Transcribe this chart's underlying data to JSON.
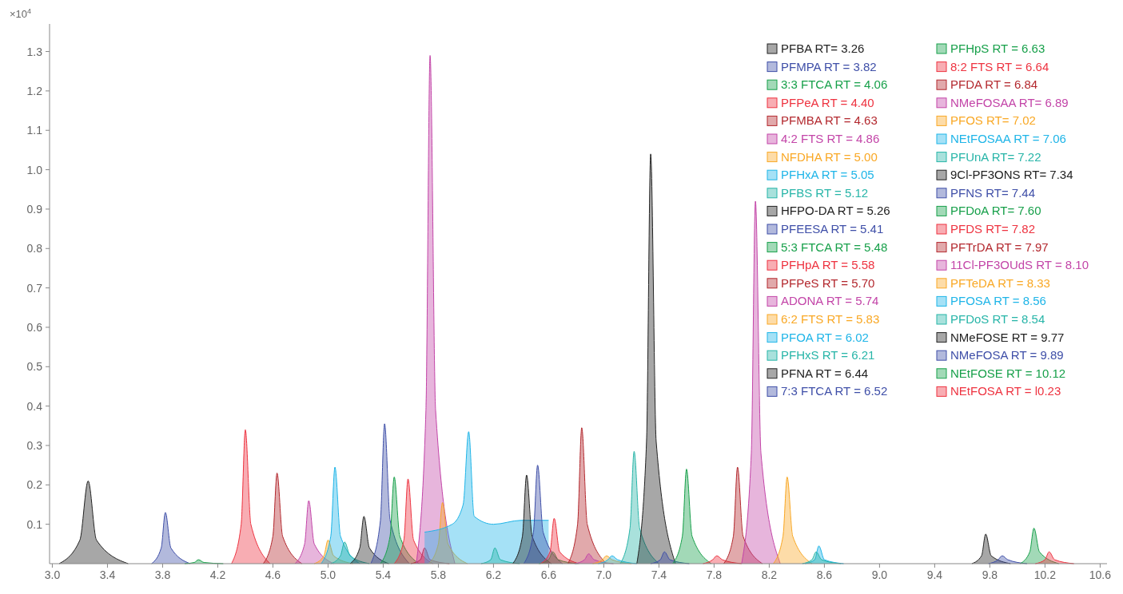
{
  "chart_data": {
    "type": "area",
    "ylabel": "×10$^{4}$",
    "xlim": [
      2.98,
      10.65
    ],
    "ylim": [
      0,
      1.37
    ],
    "xticks": [
      {
        "value": 3,
        "label": "3.0"
      },
      3.4,
      3.8,
      4.2,
      4.6,
      {
        "value": 5,
        "label": "5.0"
      },
      5.4,
      5.8,
      6.2,
      6.6,
      {
        "value": 7,
        "label": "7.0"
      },
      7.4,
      7.8,
      8.2,
      8.6,
      {
        "value": 9,
        "label": "9.0"
      },
      9.4,
      9.8,
      10.2,
      10.6
    ],
    "yticks": [
      0.1,
      0.2,
      0.3,
      0.4,
      0.5,
      0.6,
      0.7,
      0.8,
      0.9,
      {
        "value": 1,
        "label": "1.0"
      },
      1.1,
      1.2,
      1.3
    ],
    "grid": false,
    "legend": "top right",
    "series": [
      {
        "name": "PFBA RT= 3.26",
        "color": "#222222",
        "x": [
          3.05,
          3.2,
          3.26,
          3.32,
          3.55
        ],
        "values": [
          0,
          0.06,
          0.21,
          0.06,
          0
        ]
      },
      {
        "name": "PFMPA RT = 3.82",
        "color": "#3f4fa8",
        "x": [
          3.72,
          3.79,
          3.82,
          3.86,
          4.0
        ],
        "values": [
          0,
          0.04,
          0.13,
          0.04,
          0
        ]
      },
      {
        "name": "3:3 FTCA RT = 4.06",
        "color": "#17a04a",
        "x": [
          3.96,
          4.03,
          4.06,
          4.1,
          4.24
        ],
        "values": [
          0,
          0.003,
          0.01,
          0.003,
          0
        ]
      },
      {
        "name": "PFPeA RT = 4.40",
        "color": "#ee3340",
        "x": [
          4.3,
          4.37,
          4.4,
          4.44,
          4.58
        ],
        "values": [
          0,
          0.1,
          0.34,
          0.1,
          0
        ]
      },
      {
        "name": "PFMBA RT = 4.63",
        "color": "#b3282e",
        "x": [
          4.53,
          4.6,
          4.63,
          4.67,
          4.81
        ],
        "values": [
          0,
          0.07,
          0.23,
          0.07,
          0
        ]
      },
      {
        "name": "4:2 FTS RT = 4.86",
        "color": "#c345a8",
        "x": [
          4.76,
          4.83,
          4.86,
          4.9,
          5.04
        ],
        "values": [
          0,
          0.05,
          0.16,
          0.05,
          0
        ]
      },
      {
        "name": "NFDHA RT = 5.00",
        "color": "#f9a825",
        "x": [
          4.9,
          4.97,
          5.0,
          5.04,
          5.18
        ],
        "values": [
          0,
          0.02,
          0.06,
          0.02,
          0
        ]
      },
      {
        "name": "PFHxA RT = 5.05",
        "color": "#1fb5e8",
        "x": [
          4.95,
          5.02,
          5.05,
          5.09,
          5.23
        ],
        "values": [
          0,
          0.07,
          0.245,
          0.07,
          0
        ]
      },
      {
        "name": "PFBS RT = 5.12",
        "color": "#27b5a8",
        "x": [
          5.02,
          5.09,
          5.12,
          5.16,
          5.3
        ],
        "values": [
          0,
          0.02,
          0.055,
          0.02,
          0
        ]
      },
      {
        "name": "HFPO-DA RT = 5.26",
        "color": "#222222",
        "x": [
          5.16,
          5.23,
          5.26,
          5.3,
          5.44
        ],
        "values": [
          0,
          0.04,
          0.12,
          0.04,
          0
        ]
      },
      {
        "name": "PFEESA RT = 5.41",
        "color": "#3f4fa8",
        "x": [
          5.31,
          5.38,
          5.41,
          5.45,
          5.59
        ],
        "values": [
          0,
          0.11,
          0.355,
          0.11,
          0
        ]
      },
      {
        "name": "5:3 FTCA RT = 5.48",
        "color": "#17a04a",
        "x": [
          5.38,
          5.45,
          5.48,
          5.52,
          5.66
        ],
        "values": [
          0,
          0.07,
          0.22,
          0.07,
          0
        ]
      },
      {
        "name": "PFHpA RT = 5.58",
        "color": "#ee3340",
        "x": [
          5.48,
          5.55,
          5.58,
          5.62,
          5.76
        ],
        "values": [
          0,
          0.06,
          0.215,
          0.06,
          0
        ]
      },
      {
        "name": "PFPeS RT = 5.70",
        "color": "#b3282e",
        "x": [
          5.6,
          5.67,
          5.7,
          5.74,
          5.88
        ],
        "values": [
          0,
          0.01,
          0.04,
          0.01,
          0
        ]
      },
      {
        "name": "ADONA RT = 5.74",
        "color": "#c345a8",
        "x": [
          5.64,
          5.71,
          5.74,
          5.78,
          5.92
        ],
        "values": [
          0,
          0.39,
          1.29,
          0.39,
          0
        ]
      },
      {
        "name": "6:2 FTS RT = 5.83",
        "color": "#f9a825",
        "x": [
          5.73,
          5.8,
          5.83,
          5.87,
          6.01
        ],
        "values": [
          0,
          0.05,
          0.155,
          0.05,
          0
        ]
      },
      {
        "name": "PFOA RT = 6.02",
        "color": "#1fb5e8",
        "x": [
          5.7,
          5.9,
          5.98,
          6.02,
          6.06,
          6.2,
          6.4,
          6.6
        ],
        "values": [
          0.08,
          0.1,
          0.15,
          0.335,
          0.12,
          0.1,
          0.11,
          0.11
        ]
      },
      {
        "name": "PFHxS RT = 6.21",
        "color": "#27b5a8",
        "x": [
          6.11,
          6.18,
          6.21,
          6.25,
          6.39
        ],
        "values": [
          0,
          0.01,
          0.04,
          0.01,
          0
        ]
      },
      {
        "name": "PFNA RT = 6.44",
        "color": "#222222",
        "x": [
          6.34,
          6.41,
          6.44,
          6.48,
          6.62
        ],
        "values": [
          0,
          0.07,
          0.225,
          0.07,
          0
        ]
      },
      {
        "name": "7:3 FTCA RT = 6.52",
        "color": "#3f4fa8",
        "x": [
          6.42,
          6.49,
          6.52,
          6.56,
          6.7
        ],
        "values": [
          0,
          0.08,
          0.25,
          0.08,
          0
        ]
      },
      {
        "name": "PFHpS RT = 6.63",
        "color": "#17a04a",
        "x": [
          6.53,
          6.6,
          6.63,
          6.67,
          6.81
        ],
        "values": [
          0,
          0.01,
          0.03,
          0.01,
          0
        ]
      },
      {
        "name": "8:2 FTS RT = 6.64",
        "color": "#ee3340",
        "x": [
          6.54,
          6.61,
          6.64,
          6.68,
          6.82
        ],
        "values": [
          0,
          0.03,
          0.115,
          0.03,
          0
        ]
      },
      {
        "name": "PFDA RT = 6.84",
        "color": "#b3282e",
        "x": [
          6.74,
          6.81,
          6.84,
          6.88,
          7.02
        ],
        "values": [
          0,
          0.1,
          0.345,
          0.1,
          0
        ]
      },
      {
        "name": "NMeFOSAA RT= 6.89",
        "color": "#c345a8",
        "x": [
          6.79,
          6.86,
          6.89,
          6.93,
          7.07
        ],
        "values": [
          0,
          0.01,
          0.025,
          0.01,
          0
        ]
      },
      {
        "name": "PFOS RT= 7.02",
        "color": "#f9a825",
        "x": [
          6.92,
          6.99,
          7.02,
          7.06,
          7.2
        ],
        "values": [
          0,
          0.01,
          0.02,
          0.01,
          0
        ]
      },
      {
        "name": "NEtFOSAA RT = 7.06",
        "color": "#1fb5e8",
        "x": [
          6.96,
          7.03,
          7.06,
          7.1,
          7.24
        ],
        "values": [
          0,
          0.01,
          0.02,
          0.01,
          0
        ]
      },
      {
        "name": "PFUnA RT= 7.22",
        "color": "#27b5a8",
        "x": [
          7.12,
          7.19,
          7.22,
          7.26,
          7.4
        ],
        "values": [
          0,
          0.09,
          0.285,
          0.09,
          0
        ]
      },
      {
        "name": "9Cl-PF3ONS RT= 7.34",
        "color": "#222222",
        "x": [
          7.24,
          7.31,
          7.34,
          7.38,
          7.52
        ],
        "values": [
          0,
          0.31,
          1.04,
          0.31,
          0
        ]
      },
      {
        "name": "PFNS RT= 7.44",
        "color": "#3f4fa8",
        "x": [
          7.34,
          7.41,
          7.44,
          7.48,
          7.62
        ],
        "values": [
          0,
          0.01,
          0.03,
          0.01,
          0
        ]
      },
      {
        "name": "PFDoA RT= 7.60",
        "color": "#17a04a",
        "x": [
          7.5,
          7.57,
          7.6,
          7.64,
          7.78
        ],
        "values": [
          0,
          0.07,
          0.24,
          0.07,
          0
        ]
      },
      {
        "name": "PFDS RT= 7.82",
        "color": "#ee3340",
        "x": [
          7.72,
          7.79,
          7.82,
          7.86,
          8.0
        ],
        "values": [
          0,
          0.01,
          0.02,
          0.01,
          0
        ]
      },
      {
        "name": "PFTrDA RT = 7.97",
        "color": "#b3282e",
        "x": [
          7.87,
          7.94,
          7.97,
          8.01,
          8.15
        ],
        "values": [
          0,
          0.07,
          0.245,
          0.07,
          0
        ]
      },
      {
        "name": "11Cl-PF3OUdS RT = 8.10",
        "color": "#c345a8",
        "x": [
          8.0,
          8.07,
          8.1,
          8.14,
          8.28
        ],
        "values": [
          0,
          0.28,
          0.92,
          0.28,
          0
        ]
      },
      {
        "name": "PFTeDA RT = 8.33",
        "color": "#f9a825",
        "x": [
          8.23,
          8.3,
          8.33,
          8.37,
          8.51
        ],
        "values": [
          0,
          0.07,
          0.22,
          0.07,
          0
        ]
      },
      {
        "name": "PFOSA RT = 8.56",
        "color": "#1fb5e8",
        "x": [
          8.46,
          8.53,
          8.56,
          8.6,
          8.74
        ],
        "values": [
          0,
          0.01,
          0.045,
          0.01,
          0
        ]
      },
      {
        "name": "PFDoS RT = 8.54",
        "color": "#27b5a8",
        "x": [
          8.44,
          8.51,
          8.54,
          8.58,
          8.72
        ],
        "values": [
          0,
          0.01,
          0.03,
          0.01,
          0
        ]
      },
      {
        "name": "NMeFOSE RT = 9.77",
        "color": "#222222",
        "x": [
          9.67,
          9.74,
          9.77,
          9.81,
          9.95
        ],
        "values": [
          0,
          0.02,
          0.075,
          0.02,
          0
        ]
      },
      {
        "name": "NMeFOSA RT = 9.89",
        "color": "#3f4fa8",
        "x": [
          9.79,
          9.86,
          9.89,
          9.93,
          10.07
        ],
        "values": [
          0,
          0.01,
          0.02,
          0.01,
          0
        ]
      },
      {
        "name": "NEtFOSE RT = 10.12",
        "color": "#17a04a",
        "x": [
          10.02,
          10.09,
          10.12,
          10.16,
          10.3
        ],
        "values": [
          0,
          0.03,
          0.09,
          0.03,
          0
        ]
      },
      {
        "name": "NEtFOSA RT = l0.23",
        "color": "#ee3340",
        "x": [
          10.13,
          10.2,
          10.23,
          10.27,
          10.41
        ],
        "values": [
          0,
          0.01,
          0.03,
          0.01,
          0
        ]
      }
    ]
  }
}
